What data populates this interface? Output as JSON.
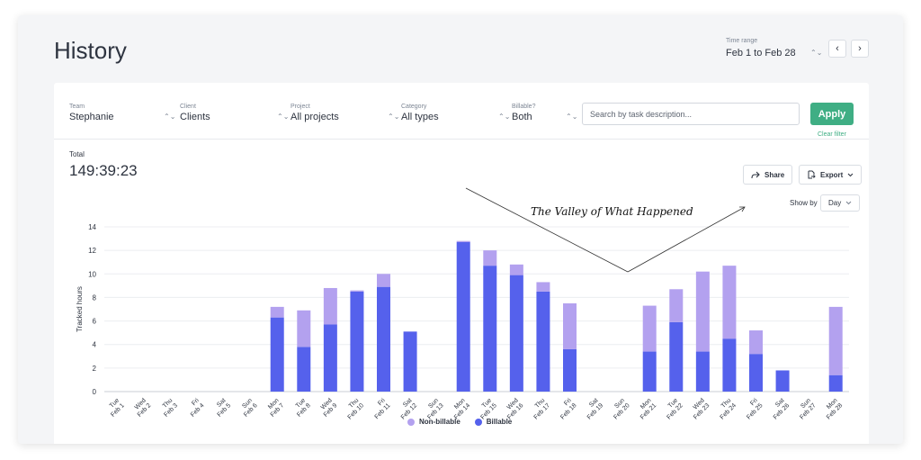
{
  "page": {
    "title": "History"
  },
  "time_range": {
    "label": "Time range",
    "value": "Feb 1 to Feb 28",
    "arrows": "⌃⌄"
  },
  "nav": {
    "prev": "‹",
    "next": "›"
  },
  "filters": [
    {
      "label": "Team",
      "value": "Stephanie"
    },
    {
      "label": "Client",
      "value": "Clients"
    },
    {
      "label": "Project",
      "value": "All projects"
    },
    {
      "label": "Category",
      "value": "All types"
    },
    {
      "label": "Billable?",
      "value": "Both"
    }
  ],
  "select_arrows": "⌃⌄",
  "search": {
    "placeholder": "Search by task description..."
  },
  "apply_label": "Apply",
  "clear_filter": "Clear filter",
  "total": {
    "label": "Total",
    "value": "149:39:23"
  },
  "actions": {
    "share": "Share",
    "export": "Export",
    "show_by_label": "Show by",
    "show_by_value": "Day"
  },
  "icons": {
    "share": "share-icon",
    "export": "export-icon",
    "chevron": "chevron-down-icon"
  },
  "colors": {
    "billable": "#5561ec",
    "non_billable": "#b3a1ef",
    "apply": "#3fae84"
  },
  "chart_data": {
    "type": "bar",
    "stacked": true,
    "ylabel": "Tracked hours",
    "ylim": [
      0,
      14
    ],
    "yticks": [
      0,
      2,
      4,
      6,
      8,
      10,
      12,
      14
    ],
    "grid": true,
    "legend_position": "bottom-center",
    "annotation": "The Valley of What Happened",
    "categories": [
      "Tue Feb 1",
      "Wed Feb 2",
      "Thu Feb 3",
      "Fri Feb 4",
      "Sat Feb 5",
      "Sun Feb 6",
      "Mon Feb 7",
      "Tue Feb 8",
      "Wed Feb 9",
      "Thu Feb 10",
      "Fri Feb 11",
      "Sat Feb 12",
      "Sun Feb 13",
      "Mon Feb 14",
      "Tue Feb 15",
      "Wed Feb 16",
      "Thu Feb 17",
      "Fri Feb 18",
      "Sat Feb 19",
      "Sun Feb 20",
      "Mon Feb 21",
      "Tue Feb 22",
      "Wed Feb 23",
      "Thu Feb 24",
      "Fri Feb 25",
      "Sat Feb 26",
      "Sun Feb 27",
      "Mon Feb 28"
    ],
    "day_labels": [
      "Tue",
      "Wed",
      "Thu",
      "Fri",
      "Sat",
      "Sun",
      "Mon",
      "Tue",
      "Wed",
      "Thu",
      "Fri",
      "Sat",
      "Sun",
      "Mon",
      "Tue",
      "Wed",
      "Thu",
      "Fri",
      "Sat",
      "Sun",
      "Mon",
      "Tue",
      "Wed",
      "Thu",
      "Fri",
      "Sat",
      "Sun",
      "Mon"
    ],
    "date_labels": [
      "Feb 1",
      "Feb 2",
      "Feb 3",
      "Feb 4",
      "Feb 5",
      "Feb 6",
      "Feb 7",
      "Feb 8",
      "Feb 9",
      "Feb 10",
      "Feb 11",
      "Feb 12",
      "Feb 13",
      "Feb 14",
      "Feb 15",
      "Feb 16",
      "Feb 17",
      "Feb 18",
      "Feb 19",
      "Feb 20",
      "Feb 21",
      "Feb 22",
      "Feb 23",
      "Feb 24",
      "Feb 25",
      "Feb 26",
      "Feb 27",
      "Feb 28"
    ],
    "series": [
      {
        "name": "Billable",
        "values": [
          0,
          0,
          0,
          0,
          0,
          0,
          6.3,
          3.8,
          5.7,
          8.5,
          8.9,
          5.1,
          0,
          12.7,
          10.7,
          9.9,
          8.5,
          3.6,
          0,
          0,
          3.4,
          5.9,
          3.4,
          4.5,
          3.2,
          1.8,
          0,
          1.4
        ]
      },
      {
        "name": "Non-billable",
        "values": [
          0,
          0,
          0,
          0,
          0,
          0,
          0.9,
          3.1,
          3.1,
          0.1,
          1.1,
          0,
          0,
          0.1,
          1.3,
          0.9,
          0.8,
          3.9,
          0,
          0,
          3.9,
          2.8,
          6.8,
          6.2,
          2.0,
          0,
          0,
          5.8
        ]
      }
    ]
  }
}
